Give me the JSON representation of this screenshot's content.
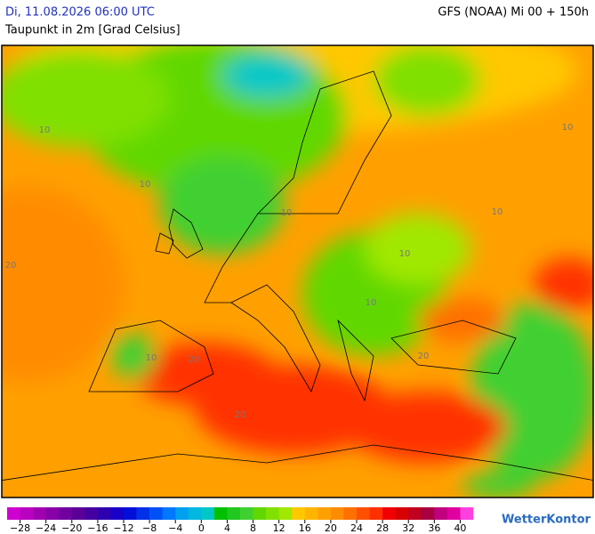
{
  "header": {
    "datetime": "Di, 11.08.2026 06:00 UTC",
    "variable": "Taupunkt in 2m [Grad Celsius]",
    "model": "GFS (NOAA) Mi 00 + 150h"
  },
  "map": {
    "contour_labels": [
      "10",
      "10",
      "20",
      "10",
      "10",
      "10",
      "10",
      "10",
      "20",
      "20",
      "10",
      "20"
    ]
  },
  "legend": {
    "labels": [
      "−28",
      "−24",
      "−20",
      "−16",
      "−12",
      "−8",
      "−4",
      "0",
      "4",
      "8",
      "12",
      "16",
      "20",
      "24",
      "28",
      "32",
      "36",
      "40"
    ],
    "colors": [
      "#d000d0",
      "#b800c0",
      "#a000b0",
      "#8800a8",
      "#7000a0",
      "#5a0098",
      "#4400a0",
      "#2e00b0",
      "#1800c8",
      "#0010d8",
      "#0030e8",
      "#0050f8",
      "#0078ff",
      "#00a0f0",
      "#00b8e0",
      "#00c8c8",
      "#00c000",
      "#20c820",
      "#40d030",
      "#60d800",
      "#80e000",
      "#a0e800",
      "#ffc800",
      "#ffb400",
      "#ffa000",
      "#ff8c00",
      "#ff7000",
      "#ff5000",
      "#ff3000",
      "#f00000",
      "#d80000",
      "#c00020",
      "#a80040",
      "#c00080",
      "#e000a0",
      "#ff40e0"
    ]
  },
  "brand": "WetterKontor"
}
